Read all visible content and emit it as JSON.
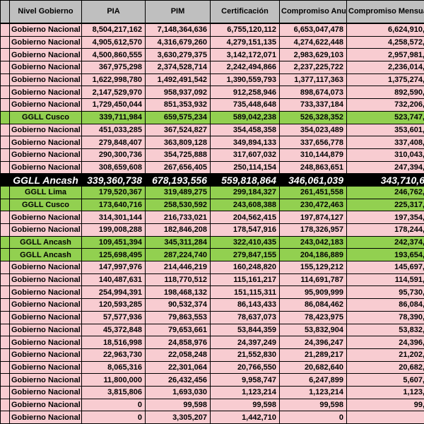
{
  "app": {
    "description": "Spreadsheet budget table (Peru public budget by government level)"
  },
  "colors": {
    "header_bg": "#bfbfbf",
    "row_pink": "#f8ccd1",
    "row_green": "#92d050",
    "row_black": "#000000",
    "row_black_text": "#ffffff",
    "border": "#000000"
  },
  "table": {
    "columns": [
      "Nivel Gobierno",
      "PIA",
      "PIM",
      "Certificación",
      "Compromiso Anual",
      "Compromiso Mensual"
    ],
    "rows": [
      {
        "nivel": "Gobierno Nacional",
        "pia": "8,504,217,162",
        "pim": "7,148,364,636",
        "certificacion": "6,755,120,112",
        "compromiso_anual": "6,653,047,478",
        "compromiso_mensual": "6,624,910,",
        "highlight": "pink"
      },
      {
        "nivel": "Gobierno Nacional",
        "pia": "4,905,612,570",
        "pim": "4,316,679,260",
        "certificacion": "4,279,151,135",
        "compromiso_anual": "4,274,622,448",
        "compromiso_mensual": "4,258,572,",
        "highlight": "pink"
      },
      {
        "nivel": "Gobierno Nacional",
        "pia": "4,500,860,555",
        "pim": "3,630,279,375",
        "certificacion": "3,142,172,071",
        "compromiso_anual": "2,983,629,103",
        "compromiso_mensual": "2,957,981,",
        "highlight": "pink"
      },
      {
        "nivel": "Gobierno Nacional",
        "pia": "367,975,298",
        "pim": "2,374,528,714",
        "certificacion": "2,242,494,866",
        "compromiso_anual": "2,237,225,722",
        "compromiso_mensual": "2,236,014,",
        "highlight": "pink"
      },
      {
        "nivel": "Gobierno Nacional",
        "pia": "1,622,998,780",
        "pim": "1,492,491,542",
        "certificacion": "1,390,559,793",
        "compromiso_anual": "1,377,117,363",
        "compromiso_mensual": "1,375,274,",
        "highlight": "pink"
      },
      {
        "nivel": "Gobierno Nacional",
        "pia": "2,147,529,970",
        "pim": "958,937,092",
        "certificacion": "912,258,946",
        "compromiso_anual": "898,674,073",
        "compromiso_mensual": "892,590,",
        "highlight": "pink"
      },
      {
        "nivel": "Gobierno Nacional",
        "pia": "1,729,450,044",
        "pim": "851,353,932",
        "certificacion": "735,448,648",
        "compromiso_anual": "733,337,184",
        "compromiso_mensual": "732,206,",
        "highlight": "pink"
      },
      {
        "nivel": "GGLL Cusco",
        "pia": "339,711,984",
        "pim": "659,575,234",
        "certificacion": "589,042,238",
        "compromiso_anual": "526,328,352",
        "compromiso_mensual": "523,747,",
        "highlight": "green"
      },
      {
        "nivel": "Gobierno Nacional",
        "pia": "451,033,285",
        "pim": "367,524,827",
        "certificacion": "354,458,358",
        "compromiso_anual": "354,023,489",
        "compromiso_mensual": "353,601,",
        "highlight": "pink"
      },
      {
        "nivel": "Gobierno Nacional",
        "pia": "279,848,407",
        "pim": "363,809,128",
        "certificacion": "349,894,133",
        "compromiso_anual": "337,656,778",
        "compromiso_mensual": "337,408,",
        "highlight": "pink"
      },
      {
        "nivel": "Gobierno Nacional",
        "pia": "290,300,736",
        "pim": "354,725,888",
        "certificacion": "317,607,032",
        "compromiso_anual": "310,144,879",
        "compromiso_mensual": "310,043,",
        "highlight": "pink"
      },
      {
        "nivel": "Gobierno Nacional",
        "pia": "308,659,608",
        "pim": "267,656,405",
        "certificacion": "250,114,154",
        "compromiso_anual": "248,863,651",
        "compromiso_mensual": "247,394,",
        "highlight": "pink"
      },
      {
        "nivel": "GGLL Ancash",
        "pia": "339,360,738",
        "pim": "678,193,556",
        "certificacion": "559,818,864",
        "compromiso_anual": "346,061,039",
        "compromiso_mensual": "343,710,6",
        "highlight": "black"
      },
      {
        "nivel": "GGLL Lima",
        "pia": "179,520,367",
        "pim": "319,489,275",
        "certificacion": "299,184,327",
        "compromiso_anual": "261,451,558",
        "compromiso_mensual": "246,762,",
        "highlight": "green"
      },
      {
        "nivel": "GGLL Cusco",
        "pia": "173,640,716",
        "pim": "258,530,592",
        "certificacion": "243,608,388",
        "compromiso_anual": "230,472,463",
        "compromiso_mensual": "225,317,",
        "highlight": "green"
      },
      {
        "nivel": "Gobierno Nacional",
        "pia": "314,301,144",
        "pim": "216,733,021",
        "certificacion": "204,562,415",
        "compromiso_anual": "197,874,127",
        "compromiso_mensual": "197,354,",
        "highlight": "pink"
      },
      {
        "nivel": "Gobierno Nacional",
        "pia": "199,008,288",
        "pim": "182,846,208",
        "certificacion": "178,547,916",
        "compromiso_anual": "178,326,957",
        "compromiso_mensual": "178,244,",
        "highlight": "pink"
      },
      {
        "nivel": "GGLL Ancash",
        "pia": "109,451,394",
        "pim": "345,311,284",
        "certificacion": "322,410,435",
        "compromiso_anual": "243,042,183",
        "compromiso_mensual": "242,374,",
        "highlight": "green"
      },
      {
        "nivel": "GGLL Ancash",
        "pia": "125,698,495",
        "pim": "287,224,740",
        "certificacion": "279,847,155",
        "compromiso_anual": "204,186,889",
        "compromiso_mensual": "193,654,",
        "highlight": "green"
      },
      {
        "nivel": "Gobierno Nacional",
        "pia": "147,997,976",
        "pim": "214,446,219",
        "certificacion": "160,248,820",
        "compromiso_anual": "155,129,212",
        "compromiso_mensual": "145,697,",
        "highlight": "pink"
      },
      {
        "nivel": "Gobierno Nacional",
        "pia": "140,487,631",
        "pim": "118,770,512",
        "certificacion": "115,161,217",
        "compromiso_anual": "114,691,787",
        "compromiso_mensual": "114,591,",
        "highlight": "pink"
      },
      {
        "nivel": "Gobierno Nacional",
        "pia": "254,994,391",
        "pim": "198,468,132",
        "certificacion": "151,115,311",
        "compromiso_anual": "95,909,999",
        "compromiso_mensual": "95,730,",
        "highlight": "pink"
      },
      {
        "nivel": "Gobierno Nacional",
        "pia": "120,593,285",
        "pim": "90,532,374",
        "certificacion": "86,143,433",
        "compromiso_anual": "86,084,462",
        "compromiso_mensual": "86,084,",
        "highlight": "pink"
      },
      {
        "nivel": "Gobierno Nacional",
        "pia": "57,577,936",
        "pim": "79,863,553",
        "certificacion": "78,637,073",
        "compromiso_anual": "78,423,975",
        "compromiso_mensual": "78,390,",
        "highlight": "pink"
      },
      {
        "nivel": "Gobierno Nacional",
        "pia": "45,372,848",
        "pim": "79,653,661",
        "certificacion": "53,844,359",
        "compromiso_anual": "53,832,904",
        "compromiso_mensual": "53,832,",
        "highlight": "pink"
      },
      {
        "nivel": "Gobierno Nacional",
        "pia": "18,516,998",
        "pim": "24,858,976",
        "certificacion": "24,397,249",
        "compromiso_anual": "24,396,247",
        "compromiso_mensual": "24,396,",
        "highlight": "pink"
      },
      {
        "nivel": "Gobierno Nacional",
        "pia": "22,963,730",
        "pim": "22,058,248",
        "certificacion": "21,552,830",
        "compromiso_anual": "21,289,217",
        "compromiso_mensual": "21,202,",
        "highlight": "pink"
      },
      {
        "nivel": "Gobierno Nacional",
        "pia": "8,065,316",
        "pim": "22,301,064",
        "certificacion": "20,766,550",
        "compromiso_anual": "20,682,640",
        "compromiso_mensual": "20,682,",
        "highlight": "pink"
      },
      {
        "nivel": "Gobierno Nacional",
        "pia": "11,800,000",
        "pim": "26,432,456",
        "certificacion": "9,958,747",
        "compromiso_anual": "6,247,899",
        "compromiso_mensual": "5,607,",
        "highlight": "pink"
      },
      {
        "nivel": "Gobierno Nacional",
        "pia": "3,815,806",
        "pim": "1,693,030",
        "certificacion": "1,123,214",
        "compromiso_anual": "1,123,214",
        "compromiso_mensual": "1,123,",
        "highlight": "pink"
      },
      {
        "nivel": "Gobierno Nacional",
        "pia": "0",
        "pim": "99,598",
        "certificacion": "99,598",
        "compromiso_anual": "99,598",
        "compromiso_mensual": "99,",
        "highlight": "pink"
      },
      {
        "nivel": "Gobierno Nacional",
        "pia": "0",
        "pim": "3,305,207",
        "certificacion": "1,442,710",
        "compromiso_anual": "0",
        "compromiso_mensual": "",
        "highlight": "pink"
      }
    ]
  }
}
